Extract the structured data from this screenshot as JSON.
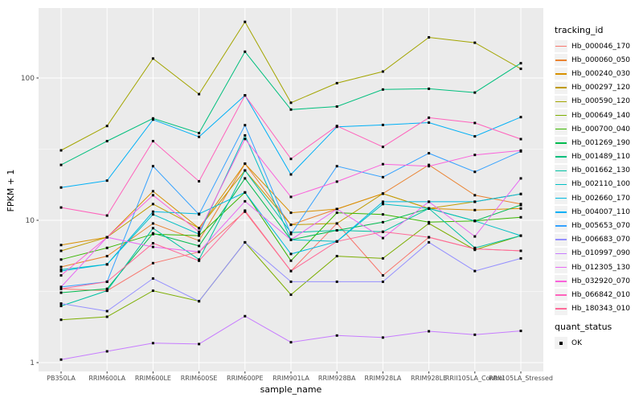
{
  "chart_data": {
    "type": "line",
    "title": "",
    "xlabel": "sample_name",
    "ylabel": "FPKM + 1",
    "yscale": "log10",
    "ylim": [
      0.87,
      310
    ],
    "grid": true,
    "panel_bg": "#EBEBEB",
    "grid_color": "#FFFFFF",
    "tick_color": "#333333",
    "marker": {
      "shape": "square",
      "color": "#000000",
      "size": 3
    },
    "yticks": [
      {
        "value": 1,
        "label": "1"
      },
      {
        "value": 10,
        "label": "10"
      },
      {
        "value": 100,
        "label": "100"
      }
    ],
    "minor_ticks": [
      3.1623,
      31.623
    ],
    "categories": [
      "PB350LA",
      "RRIM600LA",
      "RRIM600LE",
      "RRIM600SE",
      "RRIM600PE",
      "RRIM901LA",
      "RRIM928BA",
      "RRIM928LA",
      "RRIM928LE",
      "RRII105LA_Control",
      "RRII105LA_Stressed"
    ],
    "legend": {
      "title": "tracking_id",
      "position": "right"
    },
    "legend2": {
      "title": "quant_status",
      "items": [
        "OK"
      ]
    },
    "series": [
      {
        "name": "Hb_000046_170",
        "color": "#F8766D",
        "values": [
          3.3,
          3.2,
          5.0,
          6.0,
          11.5,
          4.4,
          9.5,
          4.1,
          7.6,
          6.3,
          6.1
        ]
      },
      {
        "name": "Hb_000060_050",
        "color": "#EA8331",
        "values": [
          4.7,
          5.6,
          9.5,
          7.2,
          25.0,
          9.3,
          12.0,
          15.4,
          24.5,
          15.0,
          13.0
        ]
      },
      {
        "name": "Hb_000240_030",
        "color": "#D89000",
        "values": [
          6.7,
          7.6,
          16.0,
          8.8,
          25.0,
          11.3,
          12.0,
          15.4,
          12.1,
          11.8,
          12.1
        ]
      },
      {
        "name": "Hb_000297_120",
        "color": "#C09B00",
        "values": [
          6.1,
          7.6,
          13.0,
          8.8,
          22.4,
          9.3,
          9.5,
          15.4,
          12.1,
          13.5,
          15.3
        ]
      },
      {
        "name": "Hb_000590_120",
        "color": "#A3A500",
        "values": [
          31.0,
          46.0,
          137.0,
          77.0,
          248.0,
          67.0,
          92.0,
          111.0,
          193.0,
          177.0,
          116.0
        ]
      },
      {
        "name": "Hb_000649_140",
        "color": "#7CAE00",
        "values": [
          2.0,
          2.1,
          3.2,
          2.7,
          7.0,
          3.0,
          5.6,
          5.4,
          9.5,
          6.2,
          7.8
        ]
      },
      {
        "name": "Hb_000700_040",
        "color": "#39B600",
        "values": [
          5.3,
          6.4,
          8.0,
          7.8,
          15.7,
          5.2,
          11.3,
          11.0,
          9.7,
          9.9,
          10.5
        ]
      },
      {
        "name": "Hb_001269_190",
        "color": "#00BB4E",
        "values": [
          3.1,
          3.3,
          8.1,
          6.6,
          19.7,
          7.3,
          8.5,
          9.7,
          12.1,
          9.9,
          12.8
        ]
      },
      {
        "name": "Hb_001489_110",
        "color": "#00BF7D",
        "values": [
          24.5,
          36.0,
          52.0,
          41.0,
          153.0,
          60.0,
          63.0,
          83.0,
          84.0,
          79.0,
          127.0
        ]
      },
      {
        "name": "Hb_001662_130",
        "color": "#00C1A3",
        "values": [
          2.5,
          3.2,
          8.8,
          5.3,
          22.4,
          8.2,
          8.5,
          8.3,
          12.1,
          6.4,
          7.8
        ]
      },
      {
        "name": "Hb_002110_100",
        "color": "#00BFC4",
        "values": [
          4.5,
          4.9,
          11.0,
          8.0,
          39.5,
          7.3,
          7.1,
          13.0,
          12.1,
          9.9,
          7.8
        ]
      },
      {
        "name": "Hb_002660_170",
        "color": "#00BAE0",
        "values": [
          4.4,
          4.9,
          11.5,
          11.1,
          15.7,
          5.8,
          7.1,
          13.5,
          13.5,
          13.5,
          15.3
        ]
      },
      {
        "name": "Hb_004007_110",
        "color": "#00B0F6",
        "values": [
          17.0,
          19.0,
          51.0,
          38.6,
          75.5,
          21.0,
          45.4,
          46.8,
          48.6,
          38.9,
          53.1
        ]
      },
      {
        "name": "Hb_005653_070",
        "color": "#35A2FF",
        "values": [
          3.4,
          3.7,
          24.0,
          11.0,
          46.6,
          8.0,
          24.0,
          20.1,
          29.6,
          21.9,
          30.5
        ]
      },
      {
        "name": "Hb_006683_070",
        "color": "#9590FF",
        "values": [
          2.6,
          2.3,
          3.9,
          2.7,
          7.0,
          3.7,
          3.7,
          3.7,
          7.0,
          4.4,
          5.4
        ]
      },
      {
        "name": "Hb_010997_090",
        "color": "#C77CFF",
        "values": [
          1.05,
          1.2,
          1.37,
          1.35,
          2.12,
          1.39,
          1.55,
          1.5,
          1.66,
          1.57,
          1.67
        ]
      },
      {
        "name": "Hb_012305_130",
        "color": "#E76BF3",
        "values": [
          3.4,
          7.6,
          6.5,
          6.0,
          13.6,
          7.3,
          12.0,
          7.5,
          13.5,
          7.7,
          19.7
        ]
      },
      {
        "name": "Hb_032920_070",
        "color": "#FA62DB",
        "values": [
          4.1,
          7.6,
          15.0,
          8.3,
          37.3,
          14.6,
          18.7,
          24.8,
          24.0,
          28.8,
          30.9
        ]
      },
      {
        "name": "Hb_066842_010",
        "color": "#FF62BC",
        "values": [
          12.3,
          10.8,
          36.0,
          18.8,
          75.5,
          27.0,
          46.0,
          32.8,
          52.6,
          48.3,
          37.2
        ]
      },
      {
        "name": "Hb_180343_010",
        "color": "#FF6A98",
        "values": [
          3.3,
          3.7,
          6.9,
          5.2,
          11.7,
          4.4,
          7.1,
          8.3,
          7.6,
          6.3,
          6.1
        ]
      }
    ]
  }
}
